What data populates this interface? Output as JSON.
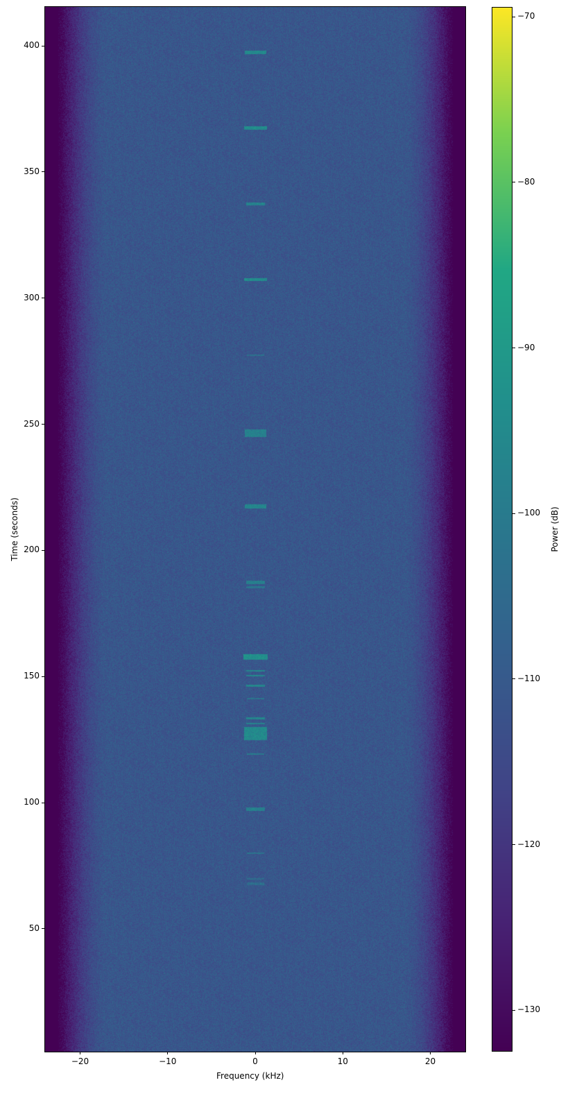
{
  "chart_data": {
    "type": "heatmap",
    "title": "",
    "xlabel": "Frequency (kHz)",
    "ylabel": "Time (seconds)",
    "colorbar_label": "Power (dB)",
    "colormap": "viridis",
    "xlim": [
      -24,
      24
    ],
    "ylim": [
      1.3,
      415.4
    ],
    "clim": [
      -132.5,
      -69.4
    ],
    "xticks": [
      -20,
      -10,
      0,
      10,
      20
    ],
    "xtick_labels": [
      "−20",
      "−10",
      "0",
      "10",
      "20"
    ],
    "yticks": [
      50,
      100,
      150,
      200,
      250,
      300,
      350,
      400
    ],
    "ytick_labels": [
      "50",
      "100",
      "150",
      "200",
      "250",
      "300",
      "350",
      "400"
    ],
    "cticks": [
      -70,
      -80,
      -90,
      -100,
      -110,
      -120,
      -130
    ],
    "ctick_labels": [
      "−70",
      "−80",
      "−90",
      "−100",
      "−110",
      "−120",
      "−130"
    ],
    "background_power_db": -111,
    "band_edge_power_db": -133,
    "passband_khz": [
      -21,
      21
    ],
    "signal_bursts": [
      {
        "time_s": 397.5,
        "duration_s": 1.5,
        "bandwidth_khz": 2.4,
        "power_db": -95
      },
      {
        "time_s": 367.5,
        "duration_s": 1.5,
        "bandwidth_khz": 2.6,
        "power_db": -94
      },
      {
        "time_s": 337.5,
        "duration_s": 1.2,
        "bandwidth_khz": 2.2,
        "power_db": -97
      },
      {
        "time_s": 307.5,
        "duration_s": 1.2,
        "bandwidth_khz": 2.6,
        "power_db": -94
      },
      {
        "time_s": 277.5,
        "duration_s": 0.8,
        "bandwidth_khz": 2.0,
        "power_db": -102
      },
      {
        "time_s": 246.5,
        "duration_s": 3.0,
        "bandwidth_khz": 2.4,
        "power_db": -98
      },
      {
        "time_s": 217.5,
        "duration_s": 1.5,
        "bandwidth_khz": 2.4,
        "power_db": -96
      },
      {
        "time_s": 187.5,
        "duration_s": 1.2,
        "bandwidth_khz": 2.2,
        "power_db": -99
      },
      {
        "time_s": 185.5,
        "duration_s": 0.8,
        "bandwidth_khz": 2.2,
        "power_db": -101
      },
      {
        "time_s": 158.0,
        "duration_s": 2.2,
        "bandwidth_khz": 2.8,
        "power_db": -93
      },
      {
        "time_s": 152.5,
        "duration_s": 0.6,
        "bandwidth_khz": 2.2,
        "power_db": -96
      },
      {
        "time_s": 150.5,
        "duration_s": 0.6,
        "bandwidth_khz": 2.2,
        "power_db": -96
      },
      {
        "time_s": 146.5,
        "duration_s": 0.7,
        "bandwidth_khz": 2.2,
        "power_db": -96
      },
      {
        "time_s": 141.5,
        "duration_s": 0.5,
        "bandwidth_khz": 2.0,
        "power_db": -102
      },
      {
        "time_s": 133.5,
        "duration_s": 0.7,
        "bandwidth_khz": 2.2,
        "power_db": -96
      },
      {
        "time_s": 131.5,
        "duration_s": 0.6,
        "bandwidth_khz": 2.2,
        "power_db": -97
      },
      {
        "time_s": 127.5,
        "duration_s": 5.0,
        "bandwidth_khz": 2.6,
        "power_db": -95
      },
      {
        "time_s": 119.5,
        "duration_s": 0.6,
        "bandwidth_khz": 2.0,
        "power_db": -100
      },
      {
        "time_s": 97.5,
        "duration_s": 1.5,
        "bandwidth_khz": 2.2,
        "power_db": -98
      },
      {
        "time_s": 80.0,
        "duration_s": 0.6,
        "bandwidth_khz": 2.0,
        "power_db": -102
      },
      {
        "time_s": 70.0,
        "duration_s": 0.6,
        "bandwidth_khz": 2.0,
        "power_db": -104
      },
      {
        "time_s": 68.0,
        "duration_s": 1.0,
        "bandwidth_khz": 2.0,
        "power_db": -104
      }
    ]
  }
}
